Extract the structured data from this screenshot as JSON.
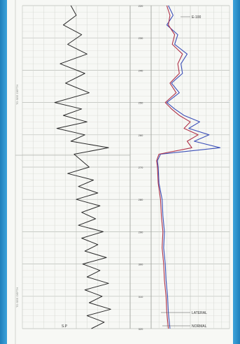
{
  "chart_data": {
    "type": "line",
    "title": "",
    "tracks": [
      {
        "name": "S.P",
        "xlim": [
          0,
          1
        ]
      },
      {
        "name": "",
        "xlim": [
          0,
          1
        ]
      }
    ],
    "depth_labels": [
      "220",
      "230",
      "240",
      "250",
      "260",
      "270",
      "280",
      "290",
      "300",
      "310",
      "320"
    ],
    "ylim": [
      220,
      320
    ],
    "series": [
      {
        "name": "S.P",
        "track": 0,
        "depth": [
          220,
          223,
          226,
          229,
          232,
          235,
          238,
          241,
          244,
          247,
          250,
          252,
          254,
          256,
          258,
          260,
          262,
          264,
          266,
          268,
          270,
          272,
          274,
          276,
          278,
          280,
          282,
          284,
          286,
          288,
          290,
          292,
          294,
          296,
          298,
          300,
          302,
          304,
          306,
          308,
          310,
          312,
          314,
          316,
          318,
          320
        ],
        "values": [
          0.45,
          0.5,
          0.38,
          0.55,
          0.42,
          0.6,
          0.35,
          0.58,
          0.4,
          0.62,
          0.3,
          0.55,
          0.38,
          0.6,
          0.32,
          0.58,
          0.45,
          0.8,
          0.48,
          0.55,
          0.62,
          0.42,
          0.66,
          0.52,
          0.7,
          0.5,
          0.72,
          0.55,
          0.68,
          0.52,
          0.75,
          0.55,
          0.7,
          0.58,
          0.78,
          0.56,
          0.72,
          0.6,
          0.8,
          0.58,
          0.74,
          0.62,
          0.82,
          0.6,
          0.76,
          0.64
        ]
      },
      {
        "name": "LATERAL",
        "track": 1,
        "color": "#3b4fb8",
        "depth": [
          220,
          223,
          226,
          229,
          232,
          235,
          238,
          241,
          244,
          247,
          250,
          252,
          254,
          256,
          258,
          260,
          262,
          264,
          266,
          268,
          270,
          275,
          280,
          285,
          290,
          295,
          300,
          305,
          310,
          315,
          320
        ],
        "values": [
          0.22,
          0.28,
          0.2,
          0.34,
          0.3,
          0.46,
          0.38,
          0.4,
          0.26,
          0.36,
          0.2,
          0.3,
          0.42,
          0.62,
          0.48,
          0.74,
          0.55,
          0.88,
          0.12,
          0.08,
          0.09,
          0.1,
          0.14,
          0.15,
          0.17,
          0.16,
          0.18,
          0.19,
          0.21,
          0.22,
          0.24
        ]
      },
      {
        "name": "NORMAL",
        "track": 1,
        "color": "#b0334a",
        "depth": [
          220,
          223,
          226,
          229,
          232,
          235,
          238,
          241,
          244,
          247,
          250,
          252,
          254,
          256,
          258,
          260,
          262,
          264,
          266,
          268,
          270,
          275,
          280,
          285,
          290,
          295,
          300,
          305,
          310,
          315,
          320
        ],
        "values": [
          0.2,
          0.24,
          0.22,
          0.3,
          0.27,
          0.4,
          0.34,
          0.36,
          0.24,
          0.32,
          0.18,
          0.26,
          0.36,
          0.5,
          0.42,
          0.6,
          0.46,
          0.52,
          0.1,
          0.07,
          0.08,
          0.09,
          0.12,
          0.13,
          0.15,
          0.14,
          0.16,
          0.17,
          0.19,
          0.2,
          0.22
        ]
      }
    ],
    "annotations": [
      {
        "text": "E-100"
      },
      {
        "text": "LATERAL"
      },
      {
        "text": "NORMAL"
      },
      {
        "text": "S.P"
      }
    ],
    "side_labels": [
      "TO SEE DEPTH",
      "TO SEE DEPTH"
    ],
    "grid": true
  }
}
